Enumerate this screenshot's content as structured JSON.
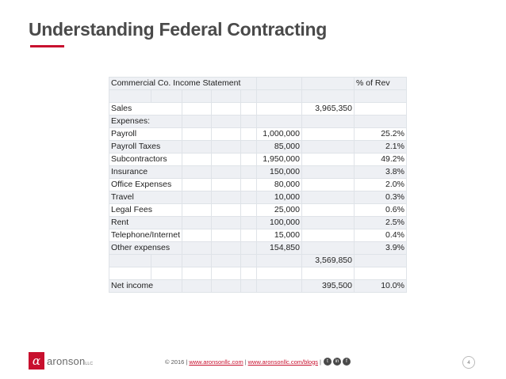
{
  "slide": {
    "title": "Understanding Federal Contracting"
  },
  "table": {
    "header_title": "Commercial Co.  Income Statement",
    "header_pct": "% of Rev",
    "sales": {
      "label": "Sales",
      "value": "3,965,350"
    },
    "expenses_label": "Expenses:",
    "expenses": [
      {
        "label": "Payroll",
        "amount": "1,000,000",
        "pct": "25.2%"
      },
      {
        "label": "Payroll Taxes",
        "amount": "85,000",
        "pct": "2.1%"
      },
      {
        "label": "Subcontractors",
        "amount": "1,950,000",
        "pct": "49.2%"
      },
      {
        "label": "Insurance",
        "amount": "150,000",
        "pct": "3.8%"
      },
      {
        "label": "Office Expenses",
        "amount": "80,000",
        "pct": "2.0%"
      },
      {
        "label": "Travel",
        "amount": "10,000",
        "pct": "0.3%"
      },
      {
        "label": "Legal Fees",
        "amount": "25,000",
        "pct": "0.6%"
      },
      {
        "label": "Rent",
        "amount": "100,000",
        "pct": "2.5%"
      },
      {
        "label": "Telephone/Internet",
        "amount": "15,000",
        "pct": "0.4%"
      },
      {
        "label": "Other expenses",
        "amount": "154,850",
        "pct": "3.9%"
      }
    ],
    "total_expenses": "3,569,850",
    "net_income": {
      "label": "Net income",
      "value": "395,500",
      "pct": "10.0%"
    }
  },
  "footer": {
    "logo_mark": "α",
    "logo_text": "aronson",
    "logo_suffix": "LLC",
    "copyright": "© 2016 |",
    "link1": "www.aronsonllc.com",
    "divider": "|",
    "link2": "www.aronsonllc.com/blogs",
    "divider2": "|",
    "social_icons": [
      "twitter-icon",
      "linkedin-icon",
      "facebook-icon"
    ],
    "page_number": "4"
  },
  "colors": {
    "accent": "#c8102e",
    "title": "#4a4a4a",
    "row_shade": "#eef0f4"
  }
}
